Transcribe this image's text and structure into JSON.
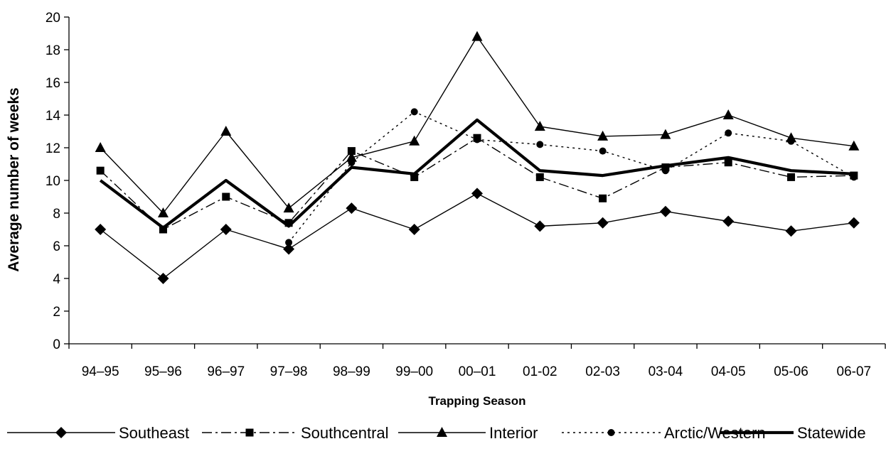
{
  "chart_data": {
    "type": "line",
    "title": "",
    "xlabel": "Trapping Season",
    "ylabel": "Average number of weeks",
    "ylim": [
      0,
      20
    ],
    "ytick_step": 2,
    "yticks": [
      "0",
      "2",
      "4",
      "6",
      "8",
      "10",
      "12",
      "14",
      "16",
      "18",
      "20"
    ],
    "grid": false,
    "legend_position": "bottom",
    "categories": [
      "94–95",
      "95–96",
      "96–97",
      "97–98",
      "98–99",
      "99–00",
      "00–01",
      "01-02",
      "02-03",
      "03-04",
      "04-05",
      "05-06",
      "06-07"
    ],
    "series": [
      {
        "name": "Southeast",
        "marker": "diamond",
        "dash": "solid",
        "width": "thin",
        "color": "#000000",
        "values": [
          7,
          4,
          7,
          5.8,
          8.3,
          7,
          9.2,
          7.2,
          7.4,
          8.1,
          7.5,
          6.9,
          7.4
        ]
      },
      {
        "name": "Southcentral",
        "marker": "square",
        "dash": "dash-dot",
        "width": "thin",
        "color": "#000000",
        "values": [
          10.6,
          7,
          9,
          7.4,
          11.8,
          10.2,
          12.6,
          10.2,
          8.9,
          10.8,
          11.1,
          10.2,
          10.3
        ]
      },
      {
        "name": "Interior",
        "marker": "triangle",
        "dash": "solid",
        "width": "thin",
        "color": "#000000",
        "values": [
          12,
          8,
          13,
          8.3,
          11.4,
          12.4,
          18.8,
          13.3,
          12.7,
          12.8,
          14,
          12.6,
          12.1
        ]
      },
      {
        "name": "Arctic/Western",
        "marker": "circle",
        "dash": "dotted",
        "width": "thin",
        "color": "#000000",
        "values": [
          null,
          null,
          null,
          6.2,
          11.1,
          14.2,
          12.5,
          12.2,
          11.8,
          10.6,
          12.9,
          12.4,
          10.2
        ]
      },
      {
        "name": "Statewide",
        "marker": "none",
        "dash": "solid",
        "width": "thick",
        "color": "#000000",
        "values": [
          10,
          7.1,
          10,
          7.2,
          10.8,
          10.4,
          13.7,
          10.6,
          10.3,
          10.9,
          11.4,
          10.6,
          10.4
        ]
      }
    ]
  }
}
